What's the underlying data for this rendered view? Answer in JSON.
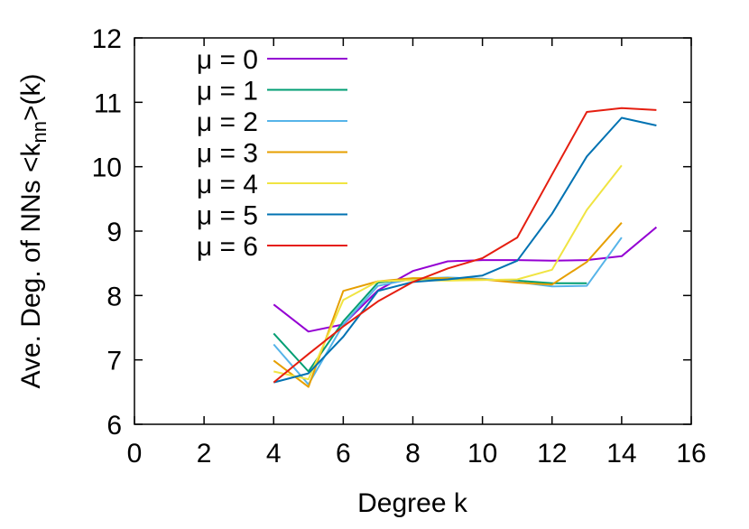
{
  "chart_data": {
    "type": "line",
    "xlabel": "Degree k",
    "ylabel": {
      "prefix": "Ave. Deg. of NNs <k",
      "subscript": "nn",
      "suffix": ">(k)"
    },
    "xlim": [
      0,
      16
    ],
    "ylim": [
      6,
      12
    ],
    "xticks": [
      0,
      2,
      4,
      6,
      8,
      10,
      12,
      14,
      16
    ],
    "yticks": [
      6,
      7,
      8,
      9,
      10,
      11,
      12
    ],
    "grid": false,
    "legend_position": "top-left",
    "series": [
      {
        "name": "μ = 0",
        "color": "#9400d3",
        "x": [
          4,
          5,
          6,
          7,
          8,
          9,
          10,
          11,
          12,
          13,
          14,
          15
        ],
        "y": [
          7.86,
          7.44,
          7.55,
          8.08,
          8.38,
          8.53,
          8.55,
          8.55,
          8.54,
          8.55,
          8.61,
          9.06
        ]
      },
      {
        "name": "μ = 1",
        "color": "#009e73",
        "x": [
          4,
          5,
          6,
          7,
          8,
          9,
          10,
          11,
          12,
          13
        ],
        "y": [
          7.41,
          6.82,
          7.6,
          8.2,
          8.26,
          8.26,
          8.25,
          8.23,
          8.19,
          8.19
        ]
      },
      {
        "name": "μ = 2",
        "color": "#56b4e9",
        "x": [
          4,
          5,
          6,
          7,
          8,
          9,
          10,
          11,
          12,
          13,
          14
        ],
        "y": [
          7.24,
          6.62,
          7.55,
          8.15,
          8.26,
          8.28,
          8.26,
          8.21,
          8.14,
          8.15,
          8.9
        ]
      },
      {
        "name": "μ = 3",
        "color": "#e69f00",
        "x": [
          4,
          5,
          6,
          7,
          8,
          9,
          10,
          11,
          12,
          13,
          14
        ],
        "y": [
          6.99,
          6.58,
          8.07,
          8.22,
          8.27,
          8.27,
          8.25,
          8.2,
          8.17,
          8.52,
          9.13
        ]
      },
      {
        "name": "μ = 4",
        "color": "#f0e442",
        "x": [
          4,
          5,
          6,
          7,
          8,
          9,
          10,
          11,
          12,
          13,
          14
        ],
        "y": [
          6.82,
          6.7,
          7.93,
          8.22,
          8.24,
          8.23,
          8.24,
          8.25,
          8.4,
          9.33,
          10.02
        ]
      },
      {
        "name": "μ = 5",
        "color": "#0072b2",
        "x": [
          4,
          5,
          6,
          7,
          8,
          9,
          10,
          11,
          12,
          13,
          14,
          15
        ],
        "y": [
          6.65,
          6.79,
          7.36,
          8.07,
          8.21,
          8.25,
          8.31,
          8.54,
          9.27,
          10.16,
          10.76,
          10.64
        ]
      },
      {
        "name": "μ = 6",
        "color": "#e51e10",
        "x": [
          4,
          5,
          6,
          7,
          8,
          9,
          10,
          11,
          12,
          13,
          14,
          15
        ],
        "y": [
          6.65,
          7.09,
          7.52,
          7.91,
          8.21,
          8.42,
          8.58,
          8.9,
          9.88,
          10.85,
          10.91,
          10.88
        ]
      }
    ]
  }
}
